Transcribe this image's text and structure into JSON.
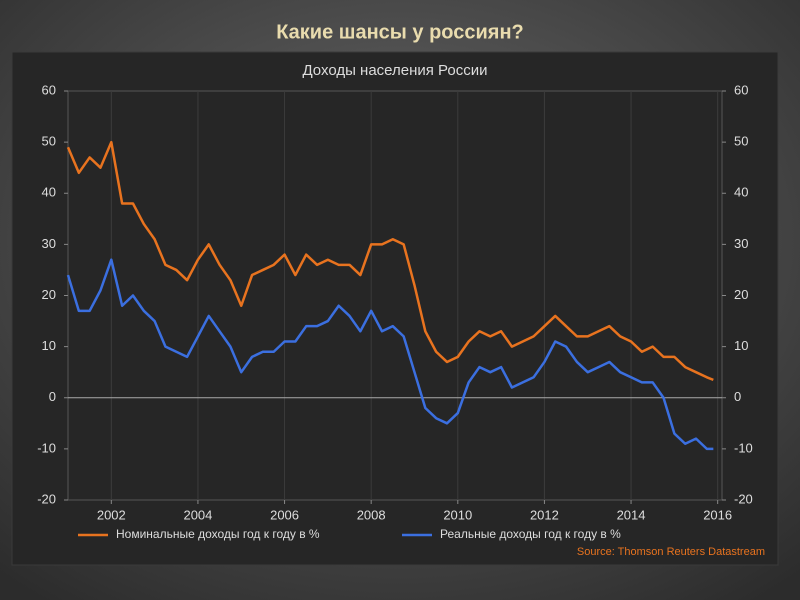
{
  "slide_title": "Какие шансы у россиян?",
  "chart_data": {
    "type": "line",
    "title": "Доходы населения России",
    "source": "Source: Thomson Reuters Datastream",
    "x": [
      2001,
      2001.25,
      2001.5,
      2001.75,
      2002,
      2002.25,
      2002.5,
      2002.75,
      2003,
      2003.25,
      2003.5,
      2003.75,
      2004,
      2004.25,
      2004.5,
      2004.75,
      2005,
      2005.25,
      2005.5,
      2005.75,
      2006,
      2006.25,
      2006.5,
      2006.75,
      2007,
      2007.25,
      2007.5,
      2007.75,
      2008,
      2008.25,
      2008.5,
      2008.75,
      2009,
      2009.25,
      2009.5,
      2009.75,
      2010,
      2010.25,
      2010.5,
      2010.75,
      2011,
      2011.25,
      2011.5,
      2011.75,
      2012,
      2012.25,
      2012.5,
      2012.75,
      2013,
      2013.25,
      2013.5,
      2013.75,
      2014,
      2014.25,
      2014.5,
      2014.75,
      2015,
      2015.25,
      2015.5,
      2015.75,
      2015.9
    ],
    "series": [
      {
        "name": "Номинальные доходы год к году в %",
        "color": "#e8731f",
        "values": [
          49,
          44,
          47,
          45,
          50,
          38,
          38,
          34,
          31,
          26,
          25,
          23,
          27,
          30,
          26,
          23,
          18,
          24,
          25,
          26,
          28,
          24,
          28,
          26,
          27,
          26,
          26,
          24,
          30,
          30,
          31,
          30,
          22,
          13,
          9,
          7,
          8,
          11,
          13,
          12,
          13,
          10,
          11,
          12,
          14,
          16,
          14,
          12,
          12,
          13,
          14,
          12,
          11,
          9,
          10,
          8,
          8,
          6,
          5,
          4,
          3.5
        ]
      },
      {
        "name": "Реальные доходы год к году в %",
        "color": "#3b6fe0",
        "values": [
          24,
          17,
          17,
          21,
          27,
          18,
          20,
          17,
          15,
          10,
          9,
          8,
          12,
          16,
          13,
          10,
          5,
          8,
          9,
          9,
          11,
          11,
          14,
          14,
          15,
          18,
          16,
          13,
          17,
          13,
          14,
          12,
          5,
          -2,
          -4,
          -5,
          -3,
          3,
          6,
          5,
          6,
          2,
          3,
          4,
          7,
          11,
          10,
          7,
          5,
          6,
          7,
          5,
          4,
          3,
          3,
          0,
          -7,
          -9,
          -8,
          -10,
          -10
        ]
      }
    ],
    "xlim": [
      2001,
      2016.1
    ],
    "xticks": [
      2002,
      2004,
      2006,
      2008,
      2010,
      2012,
      2014,
      2016
    ],
    "ylim": [
      -20,
      60
    ],
    "yticks": [
      -20,
      -10,
      0,
      10,
      20,
      30,
      40,
      50,
      60
    ],
    "y2lim": [
      -20,
      60
    ],
    "y2ticks": [
      -20,
      -10,
      0,
      10,
      20,
      30,
      40,
      50,
      60
    ],
    "grid": true
  }
}
